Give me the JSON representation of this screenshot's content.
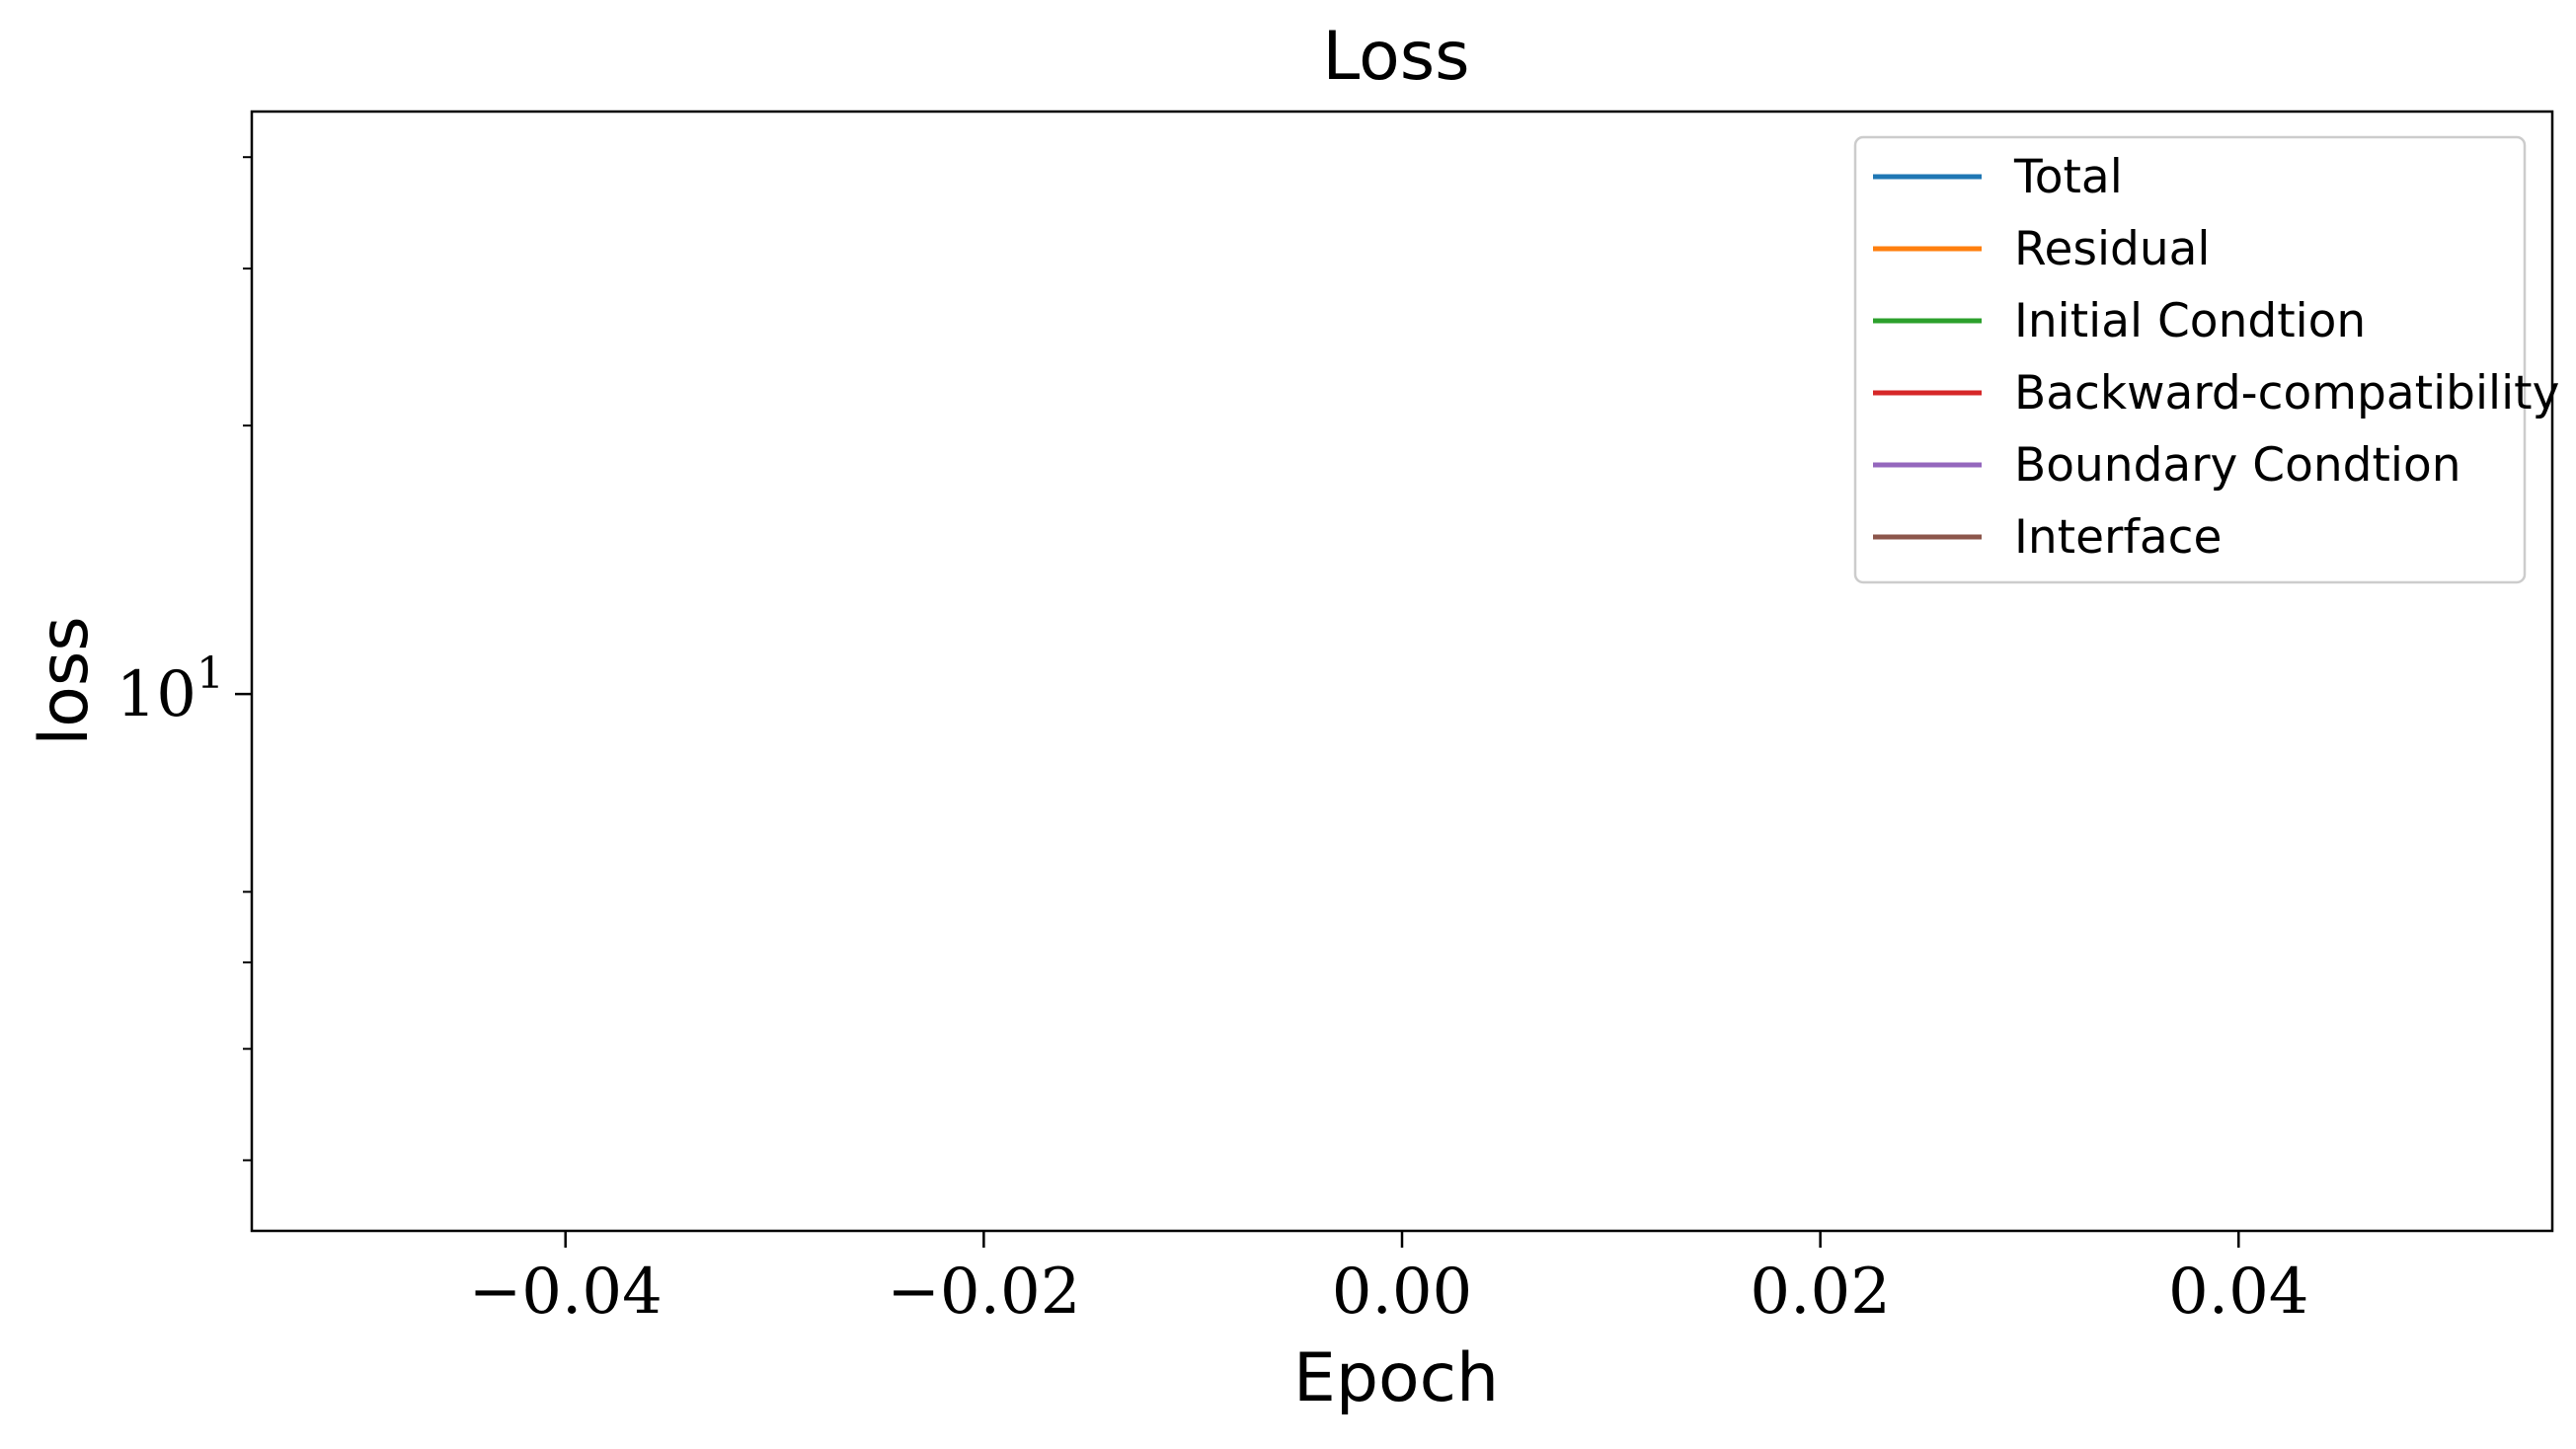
{
  "chart_data": {
    "type": "line",
    "title": "Loss",
    "xlabel": "Epoch",
    "ylabel": "loss",
    "x_scale": "linear",
    "y_scale": "log",
    "xlim": [
      -0.055,
      0.055
    ],
    "ylim": [
      2.5,
      45
    ],
    "x_ticks": [
      -0.04,
      -0.02,
      0.0,
      0.02,
      0.04
    ],
    "x_tick_labels": [
      "−0.04",
      "−0.02",
      "0.00",
      "0.02",
      "0.04"
    ],
    "y_major_ticks": [
      10
    ],
    "y_major_tick_labels": [
      "10"
    ],
    "y_major_tick_exponent": "1",
    "y_minor_ticks": [
      3,
      4,
      5,
      6,
      20,
      30,
      40
    ],
    "grid": false,
    "legend_position": "top-right",
    "series": [
      {
        "name": "Total",
        "color": "#1f77b4",
        "x": [],
        "y": []
      },
      {
        "name": "Residual",
        "color": "#ff7f0e",
        "x": [],
        "y": []
      },
      {
        "name": "Initial Condtion",
        "color": "#2ca02c",
        "x": [],
        "y": []
      },
      {
        "name": "Backward-compatibility",
        "color": "#d62728",
        "x": [],
        "y": []
      },
      {
        "name": "Boundary Condtion",
        "color": "#9467bd",
        "x": [],
        "y": []
      },
      {
        "name": "Interface",
        "color": "#8c564b",
        "x": [],
        "y": []
      }
    ]
  }
}
